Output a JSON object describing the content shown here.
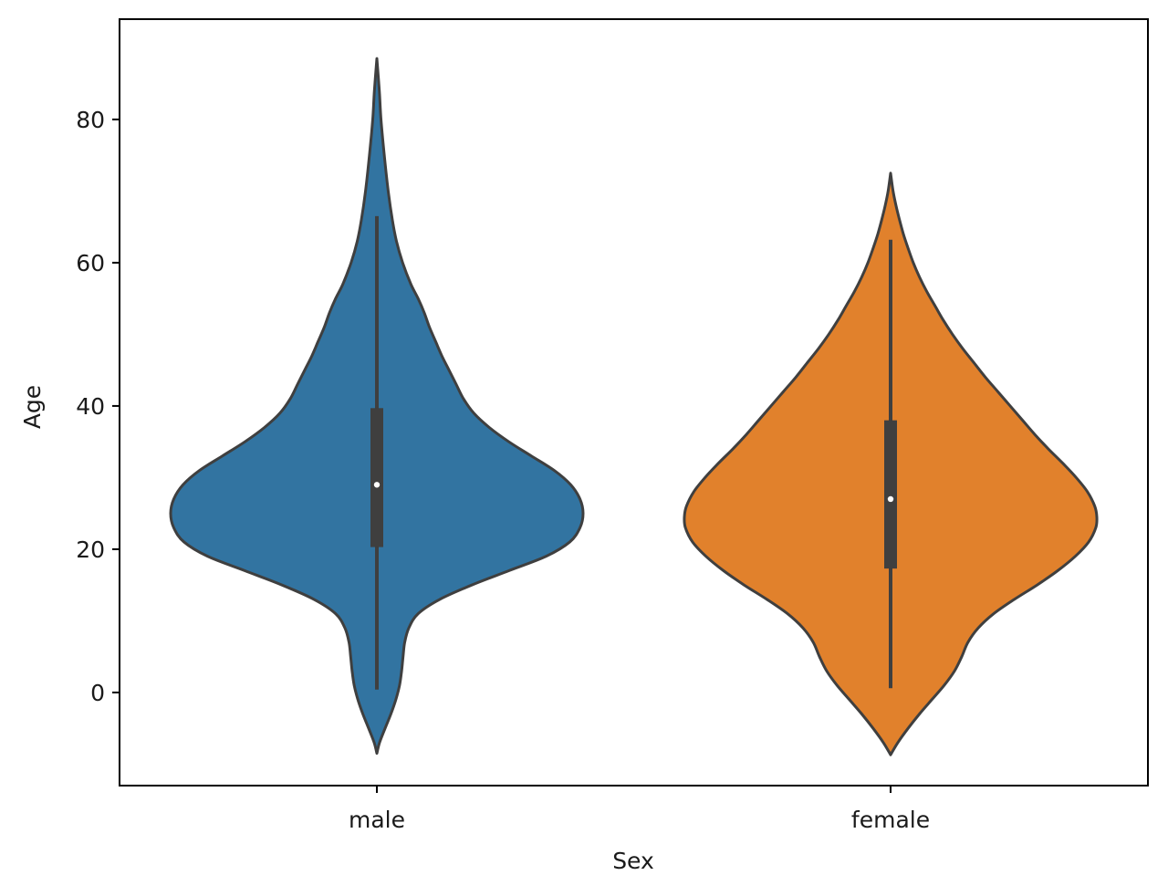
{
  "chart_data": {
    "type": "violin",
    "xlabel": "Sex",
    "ylabel": "Age",
    "categories": [
      "male",
      "female"
    ],
    "ylim": [
      -13,
      94
    ],
    "yticks": [
      0,
      20,
      40,
      60,
      80
    ],
    "grid": false,
    "legend": "none",
    "series": [
      {
        "category": "male",
        "color": "#3274a1",
        "kde_min": -8.5,
        "kde_max": 88.5,
        "whisker_low": 0.4,
        "whisker_high": 66.5,
        "q1": 20.3,
        "median": 29,
        "q3": 39.7,
        "profile": [
          [
            -8.5,
            0.0
          ],
          [
            -7,
            0.013
          ],
          [
            -5,
            0.04
          ],
          [
            -3,
            0.068
          ],
          [
            -1,
            0.092
          ],
          [
            1,
            0.11
          ],
          [
            3,
            0.12
          ],
          [
            5,
            0.127
          ],
          [
            7,
            0.135
          ],
          [
            9,
            0.155
          ],
          [
            11,
            0.2
          ],
          [
            13,
            0.305
          ],
          [
            15,
            0.46
          ],
          [
            17,
            0.64
          ],
          [
            19,
            0.82
          ],
          [
            21,
            0.935
          ],
          [
            23,
            0.985
          ],
          [
            25,
            1.0
          ],
          [
            27,
            0.985
          ],
          [
            29,
            0.94
          ],
          [
            31,
            0.86
          ],
          [
            33,
            0.75
          ],
          [
            35,
            0.64
          ],
          [
            37,
            0.545
          ],
          [
            39,
            0.47
          ],
          [
            41,
            0.42
          ],
          [
            43,
            0.385
          ],
          [
            45,
            0.35
          ],
          [
            47,
            0.315
          ],
          [
            49,
            0.285
          ],
          [
            51,
            0.255
          ],
          [
            53,
            0.23
          ],
          [
            55,
            0.2
          ],
          [
            57,
            0.165
          ],
          [
            60,
            0.125
          ],
          [
            63,
            0.095
          ],
          [
            66,
            0.075
          ],
          [
            70,
            0.055
          ],
          [
            75,
            0.036
          ],
          [
            80,
            0.02
          ],
          [
            84,
            0.012
          ],
          [
            88.5,
            0.0
          ]
        ]
      },
      {
        "category": "female",
        "color": "#e1812c",
        "kde_min": -8.7,
        "kde_max": 72.5,
        "whisker_low": 0.6,
        "whisker_high": 63.2,
        "q1": 17.3,
        "median": 27,
        "q3": 38,
        "profile": [
          [
            -8.7,
            0.0
          ],
          [
            -7,
            0.035
          ],
          [
            -5,
            0.085
          ],
          [
            -3,
            0.14
          ],
          [
            -1,
            0.2
          ],
          [
            1,
            0.26
          ],
          [
            3,
            0.31
          ],
          [
            5,
            0.345
          ],
          [
            7,
            0.375
          ],
          [
            9,
            0.425
          ],
          [
            11,
            0.5
          ],
          [
            13,
            0.6
          ],
          [
            15,
            0.71
          ],
          [
            17,
            0.81
          ],
          [
            19,
            0.895
          ],
          [
            21,
            0.96
          ],
          [
            23,
            0.995
          ],
          [
            24.5,
            1.0
          ],
          [
            26,
            0.99
          ],
          [
            28,
            0.955
          ],
          [
            30,
            0.9
          ],
          [
            32,
            0.835
          ],
          [
            34,
            0.765
          ],
          [
            36,
            0.7
          ],
          [
            38,
            0.64
          ],
          [
            40,
            0.58
          ],
          [
            42,
            0.52
          ],
          [
            44,
            0.46
          ],
          [
            46,
            0.405
          ],
          [
            48,
            0.35
          ],
          [
            50,
            0.3
          ],
          [
            52,
            0.255
          ],
          [
            54,
            0.215
          ],
          [
            56,
            0.175
          ],
          [
            58,
            0.14
          ],
          [
            60,
            0.11
          ],
          [
            62,
            0.085
          ],
          [
            64,
            0.062
          ],
          [
            66,
            0.043
          ],
          [
            68,
            0.026
          ],
          [
            70,
            0.012
          ],
          [
            72.5,
            0.0
          ]
        ]
      }
    ]
  }
}
